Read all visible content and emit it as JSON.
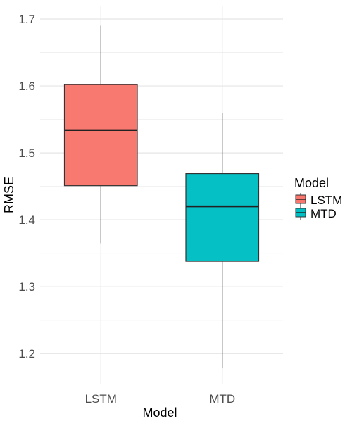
{
  "chart_data": {
    "type": "boxplot",
    "title": "",
    "xlabel": "Model",
    "ylabel": "RMSE",
    "ylim": [
      1.155,
      1.72
    ],
    "yticks": [
      1.2,
      1.3,
      1.4,
      1.5,
      1.6,
      1.7
    ],
    "ytick_labels": [
      "1.2",
      "1.3",
      "1.4",
      "1.5",
      "1.6",
      "1.7"
    ],
    "grid": true,
    "categories": [
      "LSTM",
      "MTD"
    ],
    "series": [
      {
        "name": "LSTM",
        "color": "#F8766D",
        "min": 1.365,
        "q1": 1.451,
        "median": 1.534,
        "q3": 1.602,
        "max": 1.69
      },
      {
        "name": "MTD",
        "color": "#00BFC4",
        "min": 1.178,
        "q1": 1.338,
        "median": 1.42,
        "q3": 1.469,
        "max": 1.56
      }
    ],
    "legend": {
      "title": "Model",
      "position": "right",
      "items": [
        "LSTM",
        "MTD"
      ]
    }
  }
}
